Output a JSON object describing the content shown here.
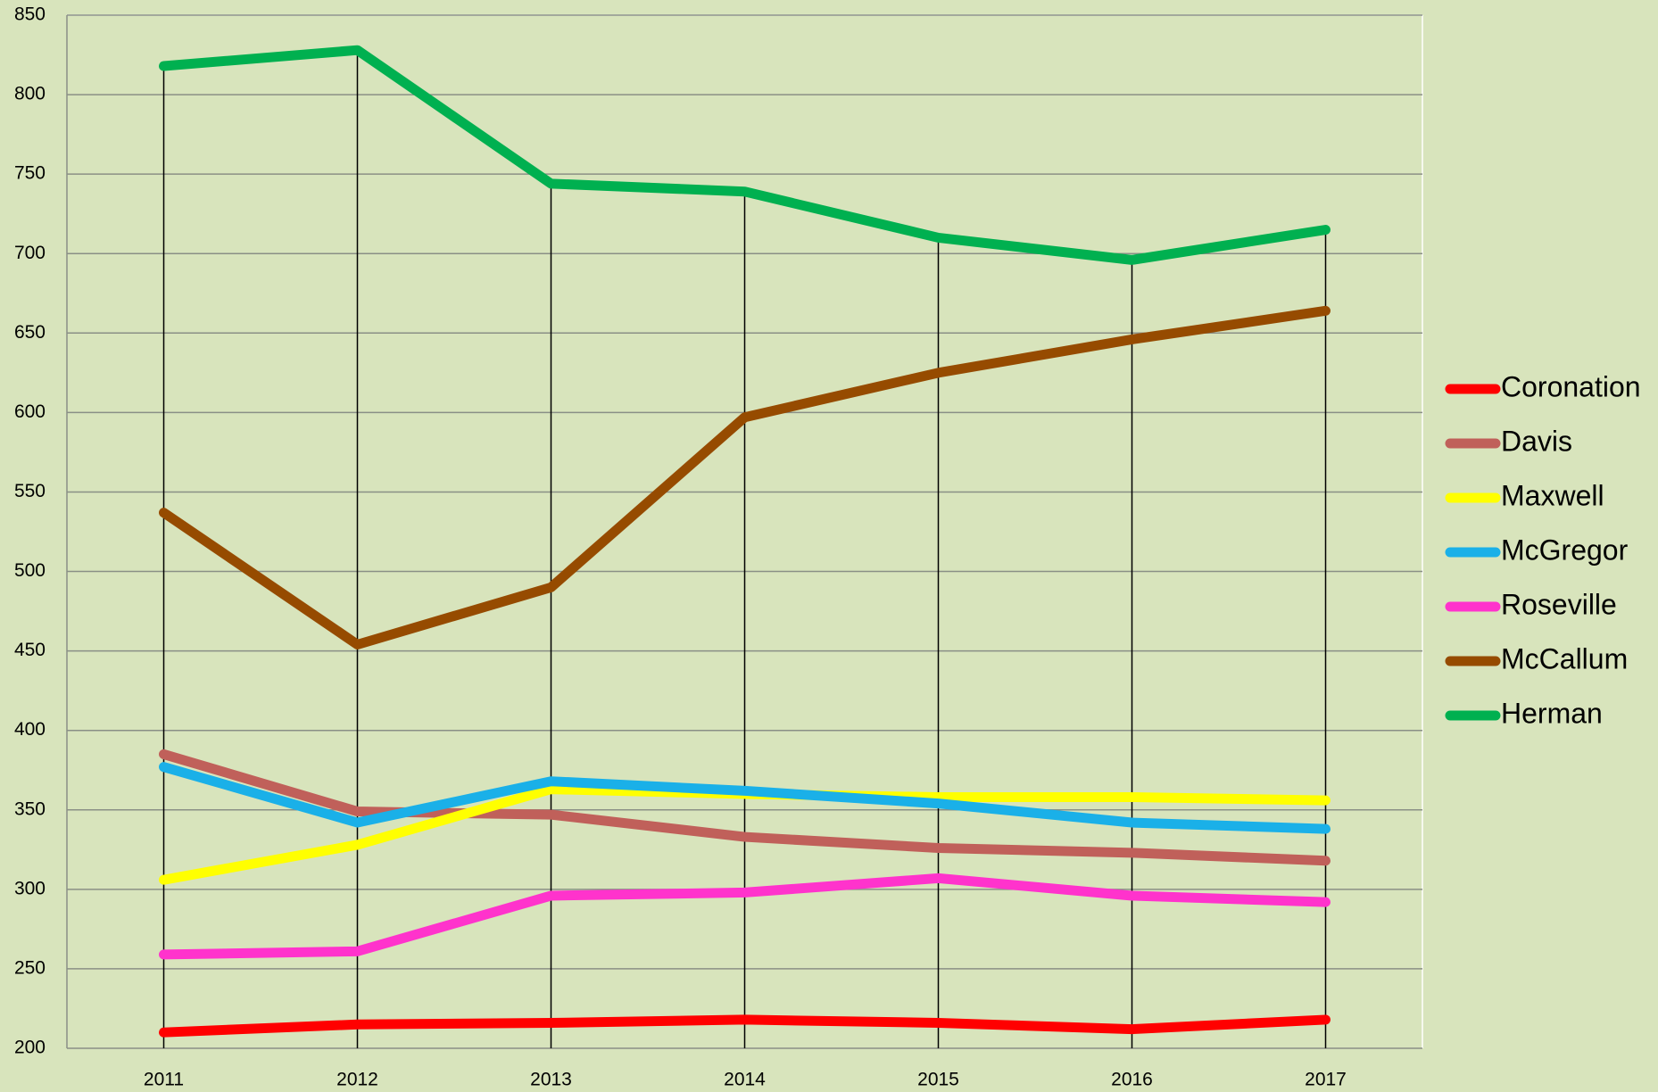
{
  "chart_data": {
    "type": "line",
    "categories": [
      "2011",
      "2012",
      "2013",
      "2014",
      "2015",
      "2016",
      "2017"
    ],
    "series": [
      {
        "name": "Coronation",
        "color": "#ff0000",
        "values": [
          210,
          215,
          216,
          218,
          216,
          212,
          218
        ]
      },
      {
        "name": "Davis",
        "color": "#c0605a",
        "values": [
          385,
          349,
          347,
          333,
          326,
          323,
          318
        ]
      },
      {
        "name": "Maxwell",
        "color": "#ffff00",
        "values": [
          306,
          328,
          363,
          360,
          358,
          358,
          356
        ]
      },
      {
        "name": "McGregor",
        "color": "#1ab0e8",
        "values": [
          377,
          342,
          368,
          362,
          354,
          342,
          338
        ]
      },
      {
        "name": "Roseville",
        "color": "#ff33cc",
        "values": [
          259,
          261,
          296,
          298,
          307,
          296,
          292
        ]
      },
      {
        "name": "McCallum",
        "color": "#964B00",
        "values": [
          537,
          454,
          490,
          597,
          625,
          646,
          664
        ]
      },
      {
        "name": "Herman",
        "color": "#00b050",
        "values": [
          818,
          828,
          744,
          739,
          710,
          696,
          715
        ]
      }
    ],
    "ylim": [
      200,
      850
    ],
    "yticks": [
      200,
      250,
      300,
      350,
      400,
      450,
      500,
      550,
      600,
      650,
      700,
      750,
      800,
      850
    ],
    "grid": true,
    "drop_lines": true,
    "legend": "right"
  }
}
